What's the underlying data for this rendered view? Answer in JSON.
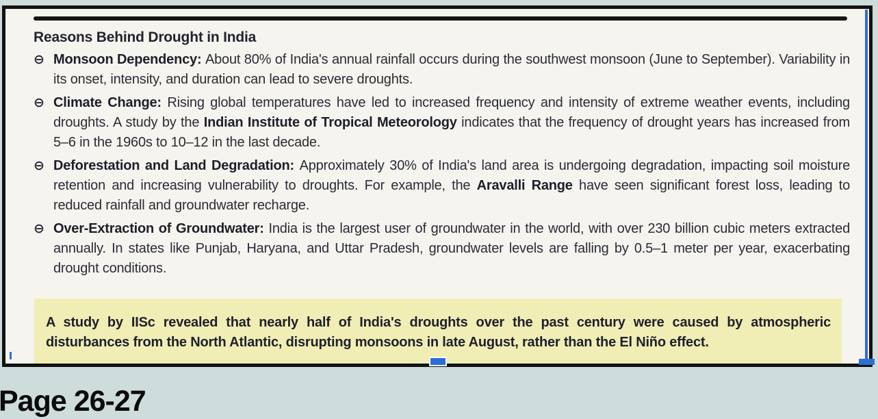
{
  "window": {
    "footer_label": "Page 26-27"
  },
  "document": {
    "heading": "Reasons Behind Drought in India",
    "bullet_symbol": "⊖",
    "bullets": [
      {
        "segments": [
          {
            "text": "Monsoon Dependency: ",
            "bold": true
          },
          {
            "text": "About 80% of India's annual rainfall occurs during the southwest monsoon (June to September). Variability in its onset, intensity, and duration can lead to severe droughts.",
            "bold": false
          }
        ]
      },
      {
        "segments": [
          {
            "text": "Climate Change: ",
            "bold": true
          },
          {
            "text": "Rising global temperatures have led to increased frequency and intensity of extreme weather events, including droughts. A study by the ",
            "bold": false
          },
          {
            "text": "Indian Institute of Tropical Meteorology",
            "bold": true
          },
          {
            "text": " indicates that the frequency of drought years has increased from 5–6 in the 1960s to 10–12 in the last decade.",
            "bold": false
          }
        ]
      },
      {
        "segments": [
          {
            "text": "Deforestation and Land Degradation: ",
            "bold": true
          },
          {
            "text": "Approximately 30% of India's land area is undergoing degradation, impacting soil moisture retention and increasing vulnerability to droughts. For example, the ",
            "bold": false
          },
          {
            "text": "Aravalli Range",
            "bold": true
          },
          {
            "text": " have seen significant forest loss, leading to reduced rainfall and groundwater recharge.",
            "bold": false
          }
        ]
      },
      {
        "segments": [
          {
            "text": "Over-Extraction of Groundwater: ",
            "bold": true
          },
          {
            "text": "India is the largest user of groundwater in the world, with over 230 billion cubic meters extracted annually. In states like Punjab, Haryana, and Uttar Pradesh, groundwater levels are falling by 0.5–1 meter per year, exacerbating drought conditions.",
            "bold": false
          }
        ]
      }
    ],
    "highlight_note": "A study by IISc revealed that nearly half of India's droughts over the past century were caused by atmospheric disturbances from the North Atlantic, disrupting monsoons in late August, rather than the El Niño effect."
  },
  "colors": {
    "page_background": "#cfdcdc",
    "paper": "#f6f4ef",
    "ink": "#23232f",
    "highlight_yellow": "#f0eeb5",
    "selection_blue": "#2e6fd6",
    "frame_border": "#121212"
  }
}
